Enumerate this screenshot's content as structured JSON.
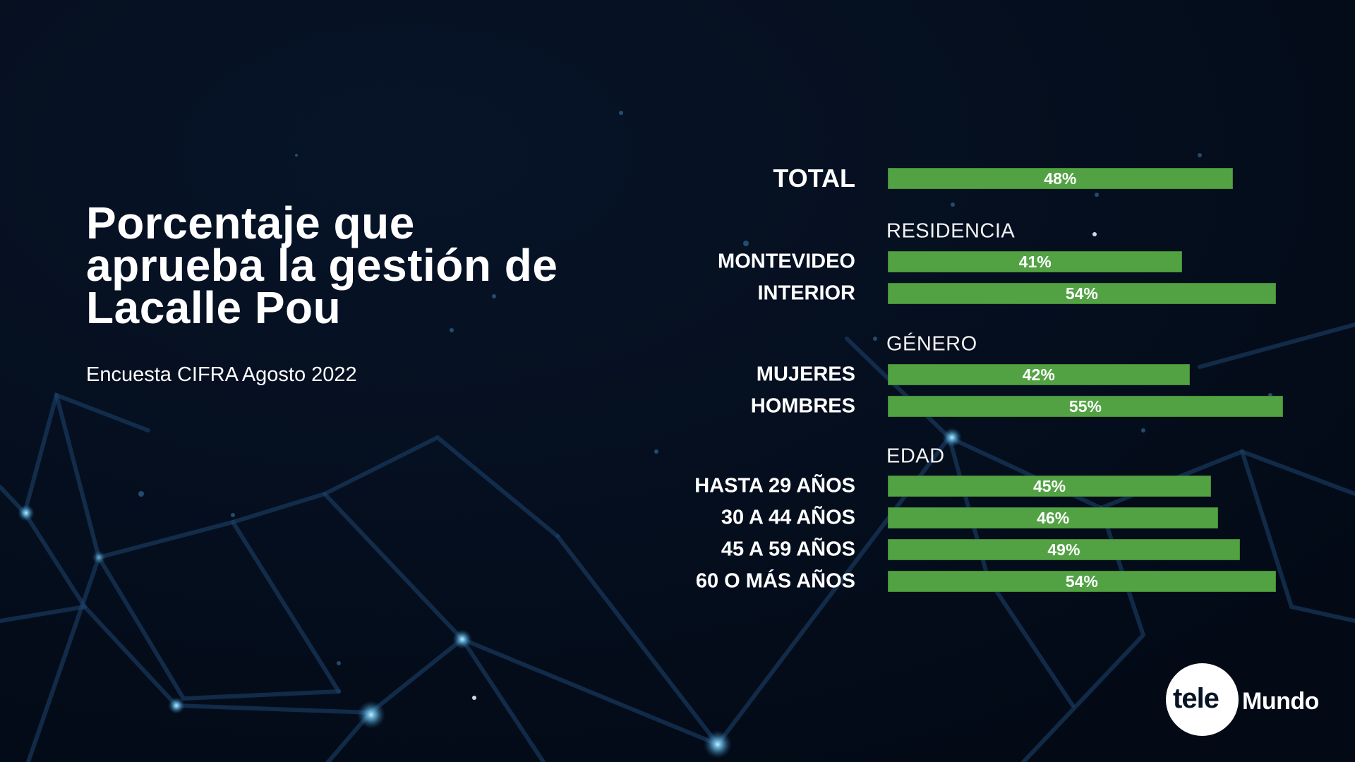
{
  "header": {
    "title_lines": [
      "Porcentaje que",
      "aprueba la gestión de",
      "Lacalle Pou"
    ],
    "subtitle": "Encuesta CIFRA Agosto 2022"
  },
  "logo": {
    "part1": "tele",
    "part2": "Mundo"
  },
  "colors": {
    "bar": "#52a244",
    "background": "#050d1c",
    "network": "#1f4d7a"
  },
  "chart_data": {
    "type": "bar",
    "orientation": "horizontal",
    "title": "Porcentaje que aprueba la gestión de Lacalle Pou",
    "subtitle": "Encuesta CIFRA Agosto 2022",
    "xlabel": "",
    "ylabel": "",
    "xlim": [
      0,
      100
    ],
    "unit": "%",
    "groups": [
      {
        "name": "",
        "items": [
          {
            "label": "TOTAL",
            "value": 48,
            "display": "48%"
          }
        ]
      },
      {
        "name": "RESIDENCIA",
        "items": [
          {
            "label": "MONTEVIDEO",
            "value": 41,
            "display": "41%"
          },
          {
            "label": "INTERIOR",
            "value": 54,
            "display": "54%"
          }
        ]
      },
      {
        "name": "GÉNERO",
        "items": [
          {
            "label": "MUJERES",
            "value": 42,
            "display": "42%"
          },
          {
            "label": "HOMBRES",
            "value": 55,
            "display": "55%"
          }
        ]
      },
      {
        "name": "EDAD",
        "items": [
          {
            "label": "HASTA 29 AÑOS",
            "value": 45,
            "display": "45%"
          },
          {
            "label": "30 A 44 AÑOS",
            "value": 46,
            "display": "46%"
          },
          {
            "label": "45 A 59 AÑOS",
            "value": 49,
            "display": "49%"
          },
          {
            "label": "60 O MÁS AÑOS",
            "value": 54,
            "display": "54%"
          }
        ]
      }
    ]
  }
}
